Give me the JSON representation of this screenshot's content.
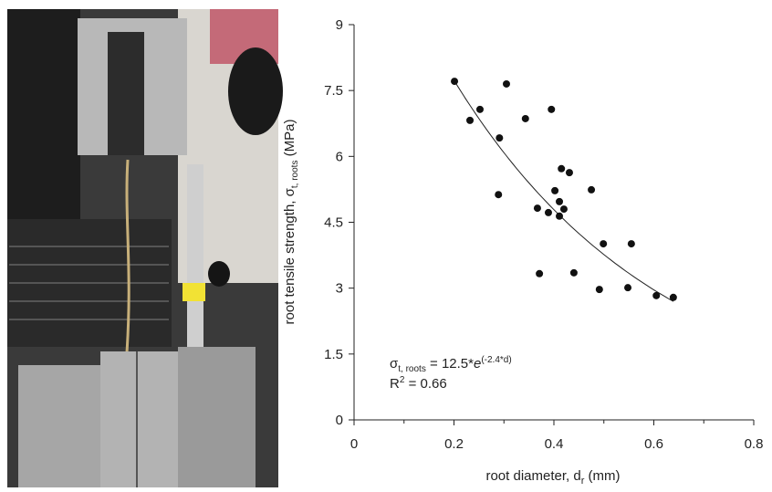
{
  "chart_data": {
    "type": "scatter",
    "x_label": {
      "main": "root diameter, d",
      "sub": "r",
      "unit": " (mm)"
    },
    "y_label": {
      "main": "root tensile strength, σ",
      "sub": "t, roots",
      "unit": " (MPa)"
    },
    "annotation": {
      "sigma": "σ",
      "sub": "t, roots",
      "eq": " = 12.5*",
      "e": "e",
      "sup": "(-2.4*d)"
    },
    "r2": {
      "r": "R",
      "sup": "2",
      "eq": " = 0.66"
    },
    "fit": {
      "a": 12.5,
      "b": -2.4
    },
    "color": "#111111",
    "x": [
      0.201,
      0.232,
      0.252,
      0.291,
      0.289,
      0.305,
      0.343,
      0.395,
      0.367,
      0.371,
      0.389,
      0.402,
      0.415,
      0.411,
      0.411,
      0.42,
      0.431,
      0.44,
      0.475,
      0.491,
      0.499,
      0.548,
      0.555,
      0.605,
      0.639
    ],
    "values": [
      7.71,
      6.82,
      7.07,
      6.42,
      5.13,
      7.65,
      6.86,
      7.07,
      4.82,
      3.33,
      4.72,
      5.22,
      5.72,
      4.97,
      4.64,
      4.8,
      5.63,
      3.35,
      5.24,
      2.97,
      4.01,
      3.01,
      4.01,
      2.83,
      2.79
    ],
    "xlim": [
      0,
      0.8
    ],
    "xticks": [
      0,
      0.2,
      0.4,
      0.6,
      0.8
    ],
    "ylim": [
      0,
      9
    ],
    "yticks": [
      0,
      1.5,
      3,
      4.5,
      6,
      7.5,
      9
    ]
  }
}
